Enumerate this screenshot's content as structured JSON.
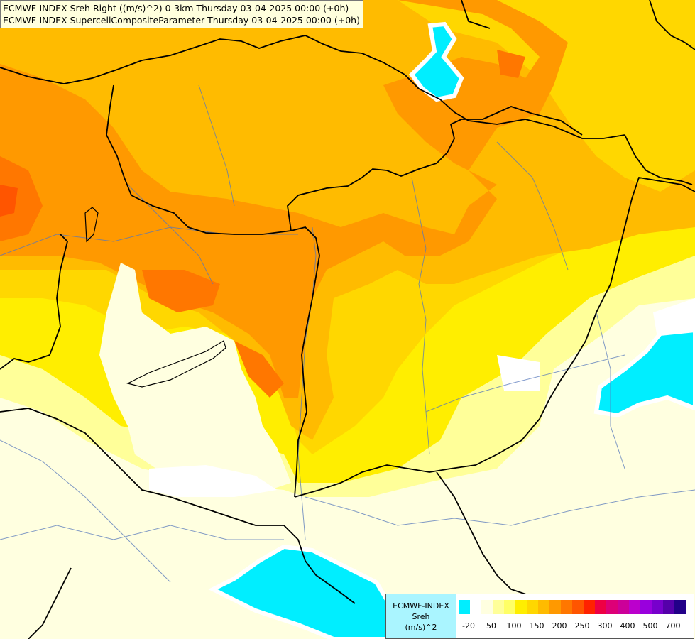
{
  "titles": {
    "line1": "ECMWF-INDEX Sreh Right ((m/s)^2) 0-3km Thursday 03-04-2025 00:00 (+0h)",
    "line2": "ECMWF-INDEX SupercellCompositeParameter Thursday 03-04-2025 00:00 (+0h)"
  },
  "legend": {
    "line1": "ECMWF-INDEX",
    "line2": "Sreh",
    "line3": "(m/s)^2",
    "swatch_colors": [
      "#00eeff",
      "#ffffff",
      "#ffffe0",
      "#ffff99",
      "#ffff66",
      "#ffee00",
      "#ffd700",
      "#ffbb00",
      "#ff9900",
      "#ff7700",
      "#ff5500",
      "#ff2200",
      "#ee0044",
      "#dd0077",
      "#cc0099",
      "#bb00cc",
      "#9900dd",
      "#7700cc",
      "#5500aa",
      "#220088"
    ],
    "ticks": [
      "-20",
      "50",
      "100",
      "150",
      "200",
      "250",
      "300",
      "400",
      "500",
      "700"
    ]
  },
  "colors": {
    "pale": "#ffffe0",
    "light_yellow": "#ffff99",
    "yellow": "#ffee00",
    "gold": "#ffd700",
    "light_orange": "#ffbb00",
    "orange": "#ff9900",
    "dark_orange": "#ff7700",
    "red_orange": "#ff5500",
    "cyan": "#00eeff",
    "border": "#000000",
    "river": "#5577bb"
  }
}
